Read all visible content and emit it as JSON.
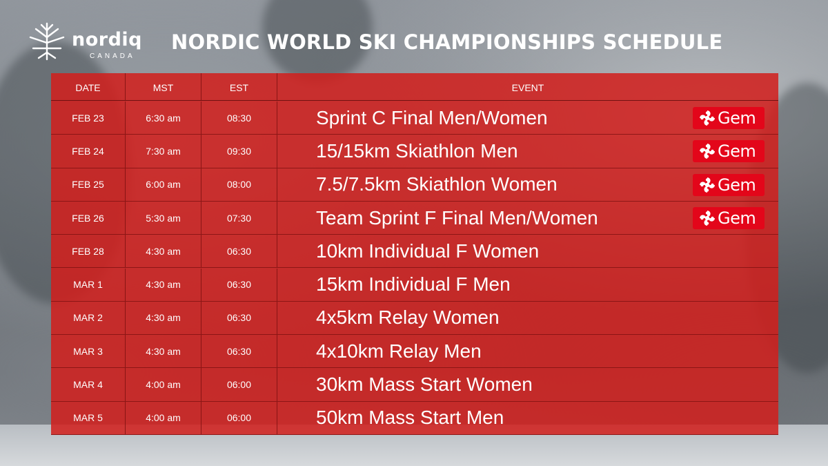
{
  "brand": {
    "logo_word": "nordiq",
    "logo_sub": "CANADA"
  },
  "title": "NORDIC WORLD SKI CHAMPIONSHIPS SCHEDULE",
  "table": {
    "headers": {
      "date": "DATE",
      "mst": "MST",
      "est": "EST",
      "event": "EVENT"
    },
    "rows": [
      {
        "date": "FEB 23",
        "mst": "6:30 am",
        "est": "08:30",
        "event": "Sprint C Final Men/Women",
        "broadcast": "Gem"
      },
      {
        "date": "FEB 24",
        "mst": "7:30 am",
        "est": "09:30",
        "event": "15/15km Skiathlon Men",
        "broadcast": "Gem"
      },
      {
        "date": "FEB 25",
        "mst": "6:00 am",
        "est": "08:00",
        "event": "7.5/7.5km Skiathlon Women",
        "broadcast": "Gem"
      },
      {
        "date": "FEB 26",
        "mst": "5:30 am",
        "est": "07:30",
        "event": "Team Sprint  F Final Men/Women",
        "broadcast": "Gem"
      },
      {
        "date": "FEB 28",
        "mst": "4:30 am",
        "est": "06:30",
        "event": "10km Individual F Women",
        "broadcast": ""
      },
      {
        "date": "MAR 1",
        "mst": "4:30 am",
        "est": "06:30",
        "event": "15km Individual F Men",
        "broadcast": ""
      },
      {
        "date": "MAR 2",
        "mst": "4:30 am",
        "est": "06:30",
        "event": "4x5km Relay Women",
        "broadcast": ""
      },
      {
        "date": "MAR 3",
        "mst": "4:30 am",
        "est": "06:30",
        "event": "4x10km Relay Men",
        "broadcast": ""
      },
      {
        "date": "MAR 4",
        "mst": "4:00 am",
        "est": "06:00",
        "event": "30km Mass Start Women",
        "broadcast": ""
      },
      {
        "date": "MAR 5",
        "mst": "4:00 am",
        "est": "06:00",
        "event": "50km Mass Start Men",
        "broadcast": ""
      }
    ]
  },
  "colors": {
    "table_red": "#d21e1c",
    "gem_red": "#e3061a"
  },
  "icons": {
    "logo": "maple-leaf-logo-icon",
    "broadcaster": "cbc-gem-icon"
  }
}
